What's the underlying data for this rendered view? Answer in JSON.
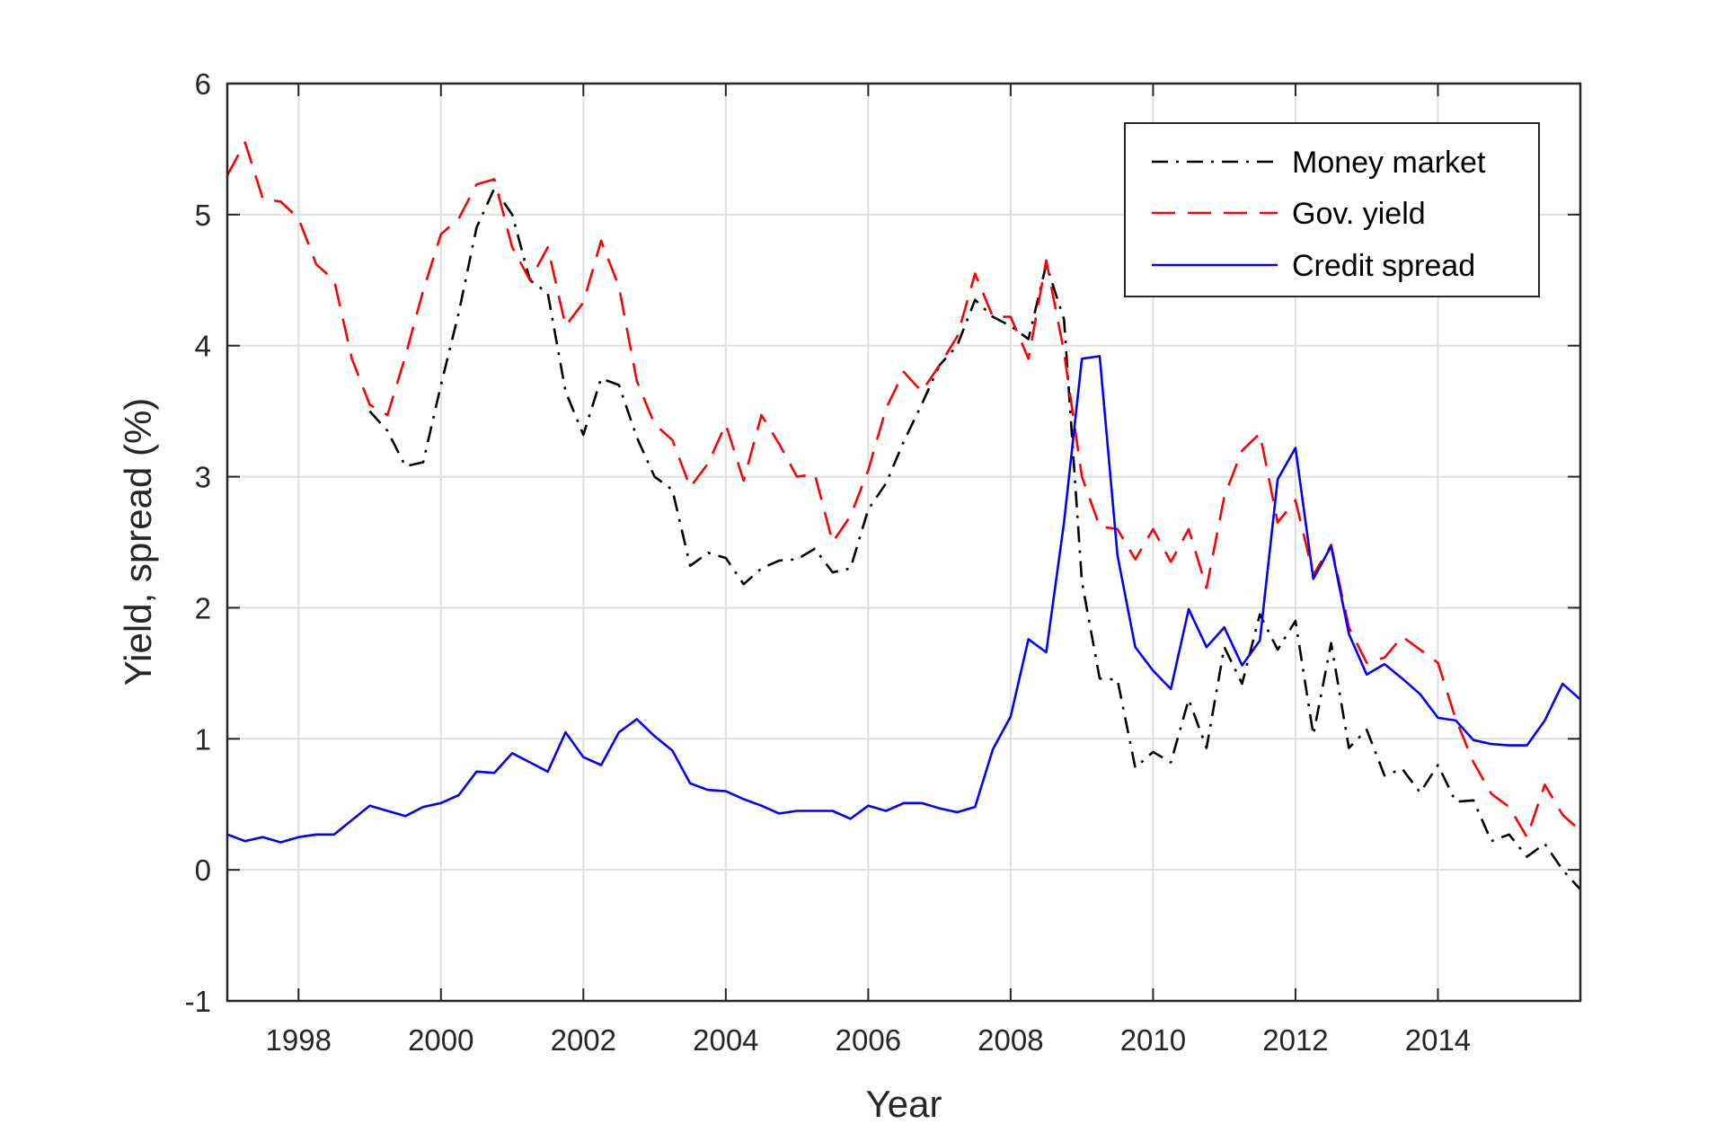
{
  "chart_data": {
    "type": "line",
    "xlabel": "Year",
    "ylabel": "Yield, spread (%)",
    "xlim": [
      1997.0,
      2016.0
    ],
    "ylim": [
      -1,
      6
    ],
    "xticks": [
      1998,
      2000,
      2002,
      2004,
      2006,
      2008,
      2010,
      2012,
      2014
    ],
    "xtick_labels": [
      "1998",
      "2000",
      "2002",
      "2004",
      "2006",
      "2008",
      "2010",
      "2012",
      "2014"
    ],
    "yticks": [
      -1,
      0,
      1,
      2,
      3,
      4,
      5,
      6
    ],
    "ytick_labels": [
      "-1",
      "0",
      "1",
      "2",
      "3",
      "4",
      "5",
      "6"
    ],
    "grid": true,
    "legend_position": "top-right",
    "series": [
      {
        "name": "Money market",
        "color": "#000000",
        "style": "dashdot",
        "points": [
          [
            1999.0,
            3.5
          ],
          [
            1999.25,
            3.35
          ],
          [
            1999.5,
            3.08
          ],
          [
            1999.75,
            3.11
          ],
          [
            2000.0,
            3.7
          ],
          [
            2000.25,
            4.25
          ],
          [
            2000.5,
            4.9
          ],
          [
            2000.75,
            5.2
          ],
          [
            2001.0,
            5.0
          ],
          [
            2001.25,
            4.5
          ],
          [
            2001.5,
            4.4
          ],
          [
            2001.75,
            3.65
          ],
          [
            2002.0,
            3.32
          ],
          [
            2002.25,
            3.75
          ],
          [
            2002.5,
            3.7
          ],
          [
            2002.75,
            3.3
          ],
          [
            2003.0,
            3.0
          ],
          [
            2003.25,
            2.9
          ],
          [
            2003.5,
            2.32
          ],
          [
            2003.75,
            2.42
          ],
          [
            2004.0,
            2.38
          ],
          [
            2004.25,
            2.18
          ],
          [
            2004.5,
            2.3
          ],
          [
            2004.75,
            2.36
          ],
          [
            2005.0,
            2.37
          ],
          [
            2005.25,
            2.45
          ],
          [
            2005.5,
            2.27
          ],
          [
            2005.75,
            2.3
          ],
          [
            2006.0,
            2.75
          ],
          [
            2006.25,
            2.95
          ],
          [
            2006.5,
            3.27
          ],
          [
            2006.75,
            3.55
          ],
          [
            2007.0,
            3.85
          ],
          [
            2007.25,
            4.0
          ],
          [
            2007.5,
            4.35
          ],
          [
            2007.75,
            4.22
          ],
          [
            2008.0,
            4.15
          ],
          [
            2008.25,
            4.05
          ],
          [
            2008.5,
            4.62
          ],
          [
            2008.75,
            4.2
          ],
          [
            2009.0,
            2.2
          ],
          [
            2009.25,
            1.46
          ],
          [
            2009.5,
            1.45
          ],
          [
            2009.75,
            0.78
          ],
          [
            2010.0,
            0.9
          ],
          [
            2010.25,
            0.82
          ],
          [
            2010.5,
            1.3
          ],
          [
            2010.75,
            0.93
          ],
          [
            2011.0,
            1.7
          ],
          [
            2011.25,
            1.42
          ],
          [
            2011.5,
            1.95
          ],
          [
            2011.75,
            1.68
          ],
          [
            2012.0,
            1.9
          ],
          [
            2012.25,
            1.03
          ],
          [
            2012.5,
            1.73
          ],
          [
            2012.75,
            0.93
          ],
          [
            2013.0,
            1.07
          ],
          [
            2013.25,
            0.72
          ],
          [
            2013.5,
            0.77
          ],
          [
            2013.75,
            0.59
          ],
          [
            2014.0,
            0.8
          ],
          [
            2014.25,
            0.52
          ],
          [
            2014.5,
            0.53
          ],
          [
            2014.75,
            0.22
          ],
          [
            2015.0,
            0.27
          ],
          [
            2015.25,
            0.1
          ],
          [
            2015.5,
            0.2
          ],
          [
            2015.75,
            0.0
          ],
          [
            2016.0,
            -0.15
          ]
        ]
      },
      {
        "name": "Gov. yield",
        "color": "#ff0000",
        "style": "dash",
        "points": [
          [
            1997.0,
            5.3
          ],
          [
            1997.25,
            5.55
          ],
          [
            1997.5,
            5.12
          ],
          [
            1997.75,
            5.1
          ],
          [
            1998.0,
            4.97
          ],
          [
            1998.25,
            4.62
          ],
          [
            1998.5,
            4.5
          ],
          [
            1998.75,
            3.9
          ],
          [
            1999.0,
            3.55
          ],
          [
            1999.25,
            3.47
          ],
          [
            1999.5,
            3.92
          ],
          [
            1999.75,
            4.42
          ],
          [
            2000.0,
            4.85
          ],
          [
            2000.25,
            4.97
          ],
          [
            2000.5,
            5.23
          ],
          [
            2000.75,
            5.27
          ],
          [
            2001.0,
            4.75
          ],
          [
            2001.25,
            4.5
          ],
          [
            2001.5,
            4.75
          ],
          [
            2001.75,
            4.15
          ],
          [
            2002.0,
            4.33
          ],
          [
            2002.25,
            4.8
          ],
          [
            2002.5,
            4.45
          ],
          [
            2002.75,
            3.73
          ],
          [
            2003.0,
            3.4
          ],
          [
            2003.25,
            3.28
          ],
          [
            2003.5,
            2.92
          ],
          [
            2003.75,
            3.1
          ],
          [
            2004.0,
            3.4
          ],
          [
            2004.25,
            2.97
          ],
          [
            2004.5,
            3.47
          ],
          [
            2004.75,
            3.25
          ],
          [
            2005.0,
            3.0
          ],
          [
            2005.25,
            3.02
          ],
          [
            2005.5,
            2.5
          ],
          [
            2005.75,
            2.7
          ],
          [
            2006.0,
            3.05
          ],
          [
            2006.25,
            3.52
          ],
          [
            2006.5,
            3.8
          ],
          [
            2006.75,
            3.65
          ],
          [
            2007.0,
            3.85
          ],
          [
            2007.25,
            4.07
          ],
          [
            2007.5,
            4.55
          ],
          [
            2007.75,
            4.22
          ],
          [
            2008.0,
            4.22
          ],
          [
            2008.25,
            3.9
          ],
          [
            2008.5,
            4.65
          ],
          [
            2008.75,
            3.95
          ],
          [
            2009.0,
            3.0
          ],
          [
            2009.25,
            2.62
          ],
          [
            2009.5,
            2.6
          ],
          [
            2009.75,
            2.37
          ],
          [
            2010.0,
            2.6
          ],
          [
            2010.25,
            2.35
          ],
          [
            2010.5,
            2.6
          ],
          [
            2010.75,
            2.15
          ],
          [
            2011.0,
            2.85
          ],
          [
            2011.25,
            3.2
          ],
          [
            2011.5,
            3.33
          ],
          [
            2011.75,
            2.65
          ],
          [
            2012.0,
            2.82
          ],
          [
            2012.25,
            2.25
          ],
          [
            2012.5,
            2.48
          ],
          [
            2012.75,
            1.85
          ],
          [
            2013.0,
            1.58
          ],
          [
            2013.25,
            1.62
          ],
          [
            2013.5,
            1.78
          ],
          [
            2013.75,
            1.68
          ],
          [
            2014.0,
            1.58
          ],
          [
            2014.25,
            1.15
          ],
          [
            2014.5,
            0.82
          ],
          [
            2014.75,
            0.58
          ],
          [
            2015.0,
            0.48
          ],
          [
            2015.25,
            0.25
          ],
          [
            2015.5,
            0.65
          ],
          [
            2015.75,
            0.42
          ],
          [
            2016.0,
            0.3
          ]
        ]
      },
      {
        "name": "Credit spread",
        "color": "#0000ff",
        "style": "solid",
        "points": [
          [
            1997.0,
            0.27
          ],
          [
            1997.25,
            0.22
          ],
          [
            1997.5,
            0.25
          ],
          [
            1997.75,
            0.21
          ],
          [
            1998.0,
            0.25
          ],
          [
            1998.25,
            0.27
          ],
          [
            1998.5,
            0.27
          ],
          [
            1998.75,
            0.38
          ],
          [
            1999.0,
            0.49
          ],
          [
            1999.25,
            0.45
          ],
          [
            1999.5,
            0.41
          ],
          [
            1999.75,
            0.48
          ],
          [
            2000.0,
            0.51
          ],
          [
            2000.25,
            0.57
          ],
          [
            2000.5,
            0.75
          ],
          [
            2000.75,
            0.74
          ],
          [
            2001.0,
            0.89
          ],
          [
            2001.25,
            0.82
          ],
          [
            2001.5,
            0.75
          ],
          [
            2001.75,
            1.05
          ],
          [
            2002.0,
            0.86
          ],
          [
            2002.25,
            0.8
          ],
          [
            2002.5,
            1.05
          ],
          [
            2002.75,
            1.15
          ],
          [
            2003.0,
            1.02
          ],
          [
            2003.25,
            0.91
          ],
          [
            2003.5,
            0.66
          ],
          [
            2003.75,
            0.61
          ],
          [
            2004.0,
            0.6
          ],
          [
            2004.25,
            0.54
          ],
          [
            2004.5,
            0.49
          ],
          [
            2004.75,
            0.43
          ],
          [
            2005.0,
            0.45
          ],
          [
            2005.25,
            0.45
          ],
          [
            2005.5,
            0.45
          ],
          [
            2005.75,
            0.39
          ],
          [
            2006.0,
            0.49
          ],
          [
            2006.25,
            0.45
          ],
          [
            2006.5,
            0.51
          ],
          [
            2006.75,
            0.51
          ],
          [
            2007.0,
            0.47
          ],
          [
            2007.25,
            0.44
          ],
          [
            2007.5,
            0.48
          ],
          [
            2007.75,
            0.92
          ],
          [
            2008.0,
            1.17
          ],
          [
            2008.25,
            1.76
          ],
          [
            2008.5,
            1.66
          ],
          [
            2008.75,
            2.65
          ],
          [
            2009.0,
            3.9
          ],
          [
            2009.25,
            3.92
          ],
          [
            2009.5,
            2.4
          ],
          [
            2009.75,
            1.7
          ],
          [
            2010.0,
            1.52
          ],
          [
            2010.25,
            1.38
          ],
          [
            2010.5,
            1.99
          ],
          [
            2010.75,
            1.7
          ],
          [
            2011.0,
            1.85
          ],
          [
            2011.25,
            1.56
          ],
          [
            2011.5,
            1.75
          ],
          [
            2011.75,
            2.98
          ],
          [
            2012.0,
            3.22
          ],
          [
            2012.25,
            2.22
          ],
          [
            2012.5,
            2.47
          ],
          [
            2012.75,
            1.8
          ],
          [
            2013.0,
            1.49
          ],
          [
            2013.25,
            1.57
          ],
          [
            2013.5,
            1.46
          ],
          [
            2013.75,
            1.34
          ],
          [
            2014.0,
            1.16
          ],
          [
            2014.25,
            1.14
          ],
          [
            2014.5,
            0.99
          ],
          [
            2014.75,
            0.96
          ],
          [
            2015.0,
            0.95
          ],
          [
            2015.25,
            0.95
          ],
          [
            2015.5,
            1.14
          ],
          [
            2015.75,
            1.42
          ],
          [
            2016.0,
            1.3
          ]
        ]
      }
    ]
  }
}
